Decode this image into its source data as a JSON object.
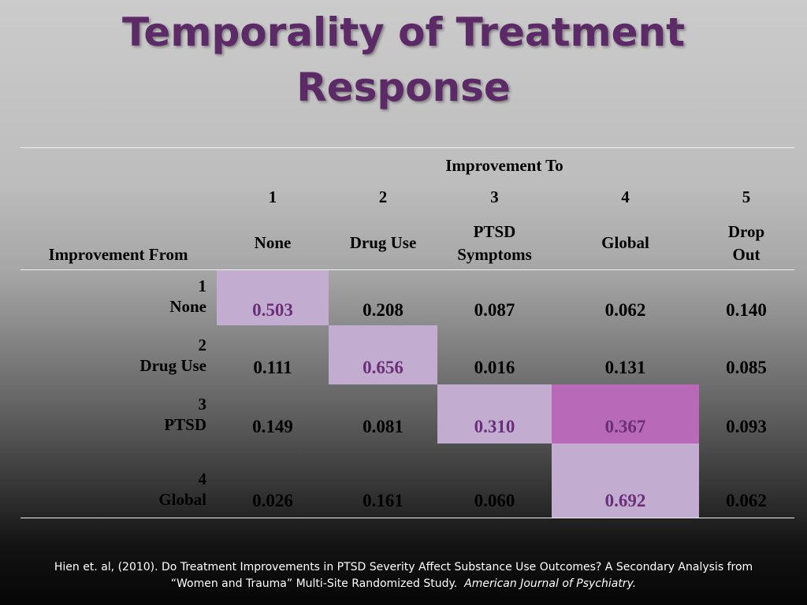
{
  "title": {
    "line1": "Temporality of Treatment",
    "line2": "Response"
  },
  "table": {
    "group_header": "Improvement To",
    "row_header": "Improvement From",
    "columns": [
      {
        "num": "1",
        "label_line1": "None",
        "label_line2": ""
      },
      {
        "num": "2",
        "label_line1": "Drug Use",
        "label_line2": ""
      },
      {
        "num": "3",
        "label_line1": "PTSD",
        "label_line2": "Symptoms"
      },
      {
        "num": "4",
        "label_line1": "Global",
        "label_line2": ""
      },
      {
        "num": "5",
        "label_line1": "Drop",
        "label_line2": "Out"
      }
    ],
    "rows": [
      {
        "num": "1",
        "label": "None",
        "values": [
          "0.503",
          "0.208",
          "0.087",
          "0.062",
          "0.140"
        ]
      },
      {
        "num": "2",
        "label": "Drug Use",
        "values": [
          "0.111",
          "0.656",
          "0.016",
          "0.131",
          "0.085"
        ]
      },
      {
        "num": "3",
        "label": "PTSD",
        "values": [
          "0.149",
          "0.081",
          "0.310",
          "0.367",
          "0.093"
        ]
      },
      {
        "num": "4",
        "label": "Global",
        "values": [
          "0.026",
          "0.161",
          "0.060",
          "0.692",
          "0.062"
        ]
      }
    ],
    "colors": {
      "diagonal": "#c2acd0",
      "highlight": "#b86ab8",
      "highlight_text": "#6b2f7a"
    }
  },
  "citation": {
    "line1": "Hien et. al, (2010). Do Treatment Improvements in PTSD Severity Affect Substance Use Outcomes? A Secondary Analysis from",
    "line2": "“Women and Trauma” Multi-Site Randomized Study.",
    "journal": "American Journal of Psychiatry."
  }
}
